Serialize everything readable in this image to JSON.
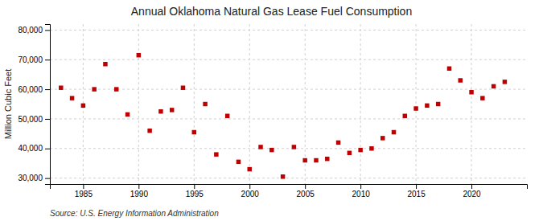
{
  "chart_data": {
    "type": "scatter",
    "title": "Annual Oklahoma Natural Gas Lease Fuel Consumption",
    "ylabel": "Million Cubic Feet",
    "source": "Source: U.S. Energy Information Administration",
    "color": "#c00000",
    "marker": "square",
    "x": [
      1983,
      1984,
      1985,
      1986,
      1987,
      1988,
      1989,
      1990,
      1991,
      1992,
      1993,
      1994,
      1995,
      1996,
      1997,
      1998,
      1999,
      2000,
      2001,
      2002,
      2003,
      2004,
      2005,
      2006,
      2007,
      2008,
      2009,
      2010,
      2011,
      2012,
      2013,
      2014,
      2015,
      2016,
      2017,
      2018,
      2019,
      2020,
      2021,
      2022,
      2023
    ],
    "values": [
      60500,
      57000,
      54500,
      60000,
      68500,
      60000,
      51500,
      71500,
      46000,
      52500,
      53000,
      60500,
      45500,
      55000,
      38000,
      51000,
      35500,
      33000,
      40500,
      39500,
      30500,
      40500,
      36000,
      36000,
      36500,
      42000,
      38500,
      39500,
      40000,
      43500,
      45500,
      51000,
      53500,
      54500,
      55000,
      67000,
      63000,
      59000,
      57000,
      61000,
      62500
    ],
    "xlim": [
      1982,
      2025
    ],
    "xticks": [
      1985,
      1990,
      1995,
      2000,
      2005,
      2010,
      2015,
      2020
    ],
    "ylim": [
      28000,
      82000
    ],
    "yticks": [
      {
        "value": 30000,
        "label": "30,000"
      },
      {
        "value": 40000,
        "label": "40,000"
      },
      {
        "value": 50000,
        "label": "50,000"
      },
      {
        "value": 60000,
        "label": "60,000"
      },
      {
        "value": 70000,
        "label": "70,000"
      },
      {
        "value": 80000,
        "label": "80,000"
      }
    ],
    "grid": true
  }
}
